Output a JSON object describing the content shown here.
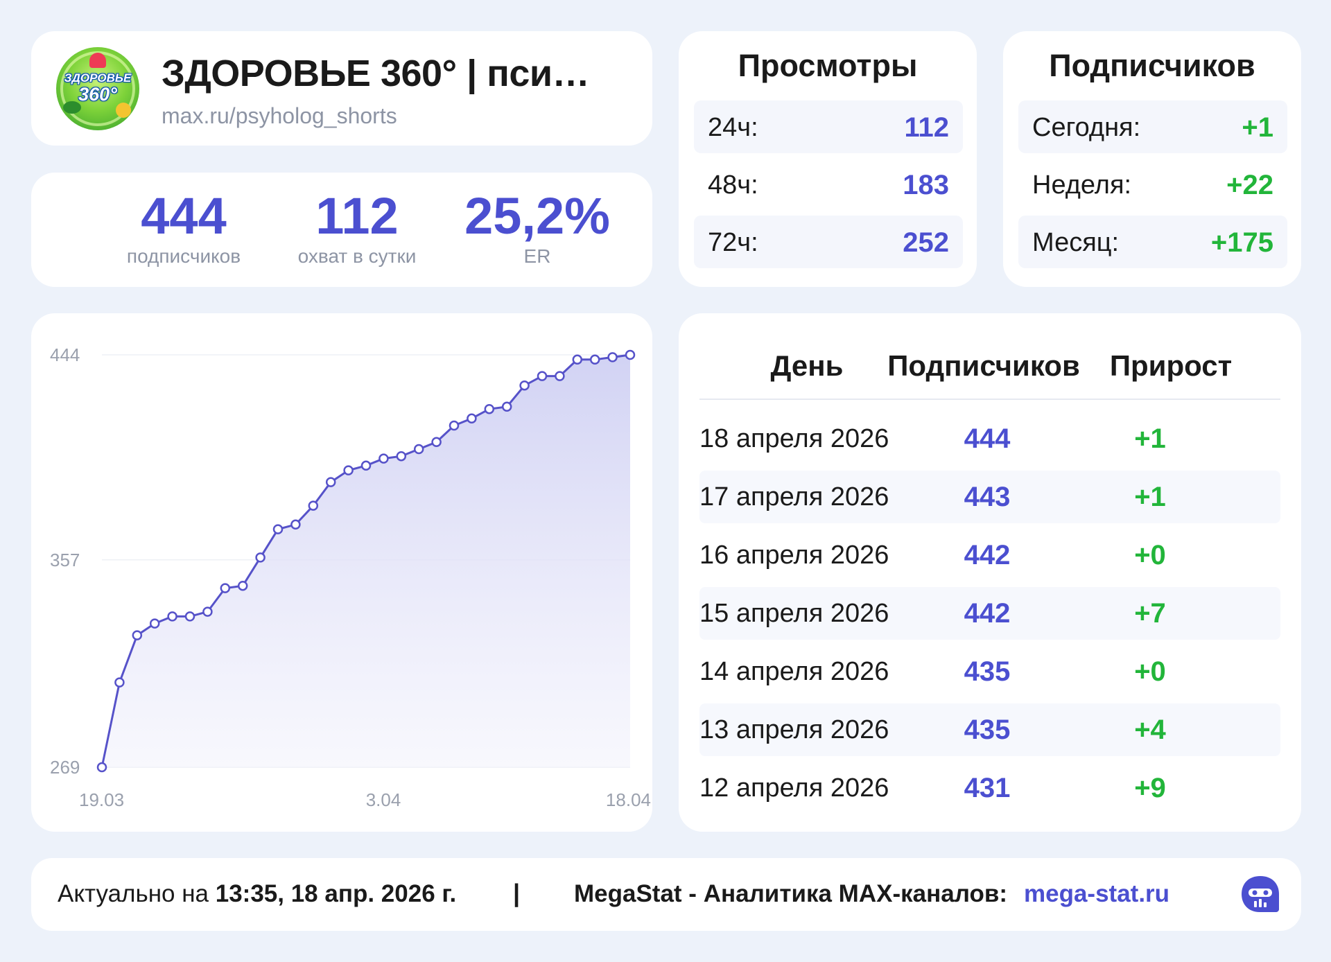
{
  "channel": {
    "title": "ЗДОРОВЬЕ 360° | пси…",
    "link": "max.ru/psyholog_shorts",
    "avatar_text_top": "ЗДОРОВЬЕ",
    "avatar_text_bottom": "360°"
  },
  "stats": {
    "subscribers": {
      "value": "444",
      "label": "подписчиков"
    },
    "reach": {
      "value": "112",
      "label": "охват в сутки"
    },
    "er": {
      "value": "25,2%",
      "label": "ER"
    }
  },
  "views": {
    "title": "Просмотры",
    "rows": [
      {
        "label": "24ч:",
        "value": "112"
      },
      {
        "label": "48ч:",
        "value": "183"
      },
      {
        "label": "72ч:",
        "value": "252"
      }
    ]
  },
  "subscribers_growth": {
    "title": "Подписчиков",
    "rows": [
      {
        "label": "Сегодня:",
        "value": "+1"
      },
      {
        "label": "Неделя:",
        "value": "+22"
      },
      {
        "label": "Месяц:",
        "value": "+175"
      }
    ]
  },
  "chart_data": {
    "type": "area",
    "yticks": [
      "444",
      "357",
      "269"
    ],
    "xticks": [
      "19.03",
      "3.04",
      "18.04"
    ],
    "ylim": [
      269,
      444
    ],
    "x": [
      "19.03",
      "20.03",
      "21.03",
      "22.03",
      "23.03",
      "24.03",
      "25.03",
      "26.03",
      "27.03",
      "28.03",
      "29.03",
      "30.03",
      "31.03",
      "1.04",
      "2.04",
      "3.04",
      "4.04",
      "5.04",
      "6.04",
      "7.04",
      "8.04",
      "9.04",
      "10.04",
      "11.04",
      "12.04",
      "13.04",
      "14.04",
      "15.04",
      "16.04",
      "17.04",
      "18.04"
    ],
    "values": [
      269,
      305,
      325,
      330,
      333,
      333,
      335,
      345,
      346,
      358,
      370,
      372,
      380,
      390,
      395,
      397,
      400,
      401,
      404,
      407,
      414,
      417,
      421,
      422,
      431,
      435,
      435,
      442,
      442,
      443,
      444
    ],
    "color": "#5652c9",
    "fill_color": "#d9daf5"
  },
  "daily": {
    "headers": {
      "day": "День",
      "subscribers": "Подписчиков",
      "growth": "Прирост"
    },
    "rows": [
      {
        "day": "18 апреля 2026",
        "subscribers": "444",
        "growth": "+1"
      },
      {
        "day": "17 апреля 2026",
        "subscribers": "443",
        "growth": "+1"
      },
      {
        "day": "16 апреля 2026",
        "subscribers": "442",
        "growth": "+0"
      },
      {
        "day": "15 апреля 2026",
        "subscribers": "442",
        "growth": "+7"
      },
      {
        "day": "14 апреля 2026",
        "subscribers": "435",
        "growth": "+0"
      },
      {
        "day": "13 апреля 2026",
        "subscribers": "435",
        "growth": "+4"
      },
      {
        "day": "12 апреля 2026",
        "subscribers": "431",
        "growth": "+9"
      }
    ]
  },
  "footer": {
    "actual_prefix": "Актуально на ",
    "actual_time": "13:35, 18 апр. 2026 г.",
    "separator": "|",
    "brand": "MegaStat - Аналитика MAX-каналов:",
    "link": "mega-stat.ru",
    "icon": "megastat-logo-icon"
  },
  "colors": {
    "accent": "#4b4fd0",
    "positive": "#22b53a",
    "background": "#edf2fa",
    "muted": "#8d94a4"
  }
}
